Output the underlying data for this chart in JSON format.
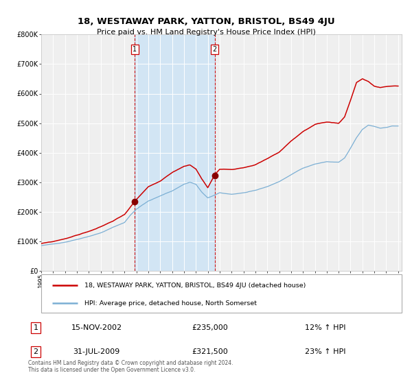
{
  "title": "18, WESTAWAY PARK, YATTON, BRISTOL, BS49 4JU",
  "subtitle": "Price paid vs. HM Land Registry's House Price Index (HPI)",
  "bg_color": "#ffffff",
  "plot_bg_color": "#efefef",
  "grid_color": "#ffffff",
  "hpi_line_color": "#7bafd4",
  "price_line_color": "#cc0000",
  "sale1_date_num": 2002.875,
  "sale1_price": 235000,
  "sale1_label": "15-NOV-2002",
  "sale1_pct": "12% ↑ HPI",
  "sale1_price_str": "£235,000",
  "sale2_date_num": 2009.583,
  "sale2_price": 321500,
  "sale2_label": "31-JUL-2009",
  "sale2_pct": "23% ↑ HPI",
  "sale2_price_str": "£321,500",
  "legend_label1": "18, WESTAWAY PARK, YATTON, BRISTOL, BS49 4JU (detached house)",
  "legend_label2": "HPI: Average price, detached house, North Somerset",
  "footer1": "Contains HM Land Registry data © Crown copyright and database right 2024.",
  "footer2": "This data is licensed under the Open Government Licence v3.0.",
  "xmin": 1995.0,
  "xmax": 2025.3,
  "ymin": 0,
  "ymax": 800000,
  "shade_x1": 2002.875,
  "shade_x2": 2009.583,
  "yticks": [
    0,
    100000,
    200000,
    300000,
    400000,
    500000,
    600000,
    700000,
    800000
  ],
  "ylabels": [
    "£0",
    "£100K",
    "£200K",
    "£300K",
    "£400K",
    "£500K",
    "£600K",
    "£700K",
    "£800K"
  ]
}
